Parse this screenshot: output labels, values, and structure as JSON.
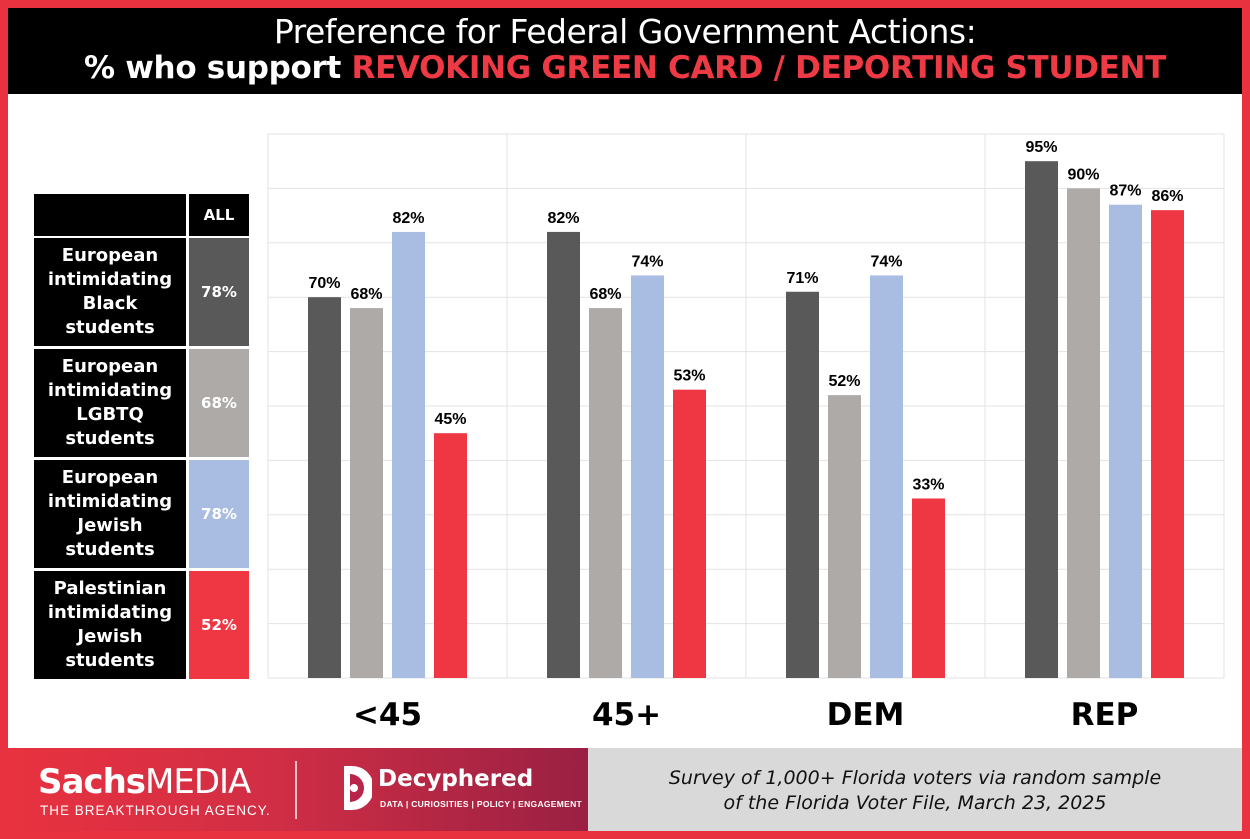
{
  "title": {
    "line1": "Preference for Federal Government Actions:",
    "line2_prefix": "% who support ",
    "line2_highlight": "REVOKING GREEN CARD / DEPORTING STUDENT"
  },
  "legend": {
    "header": "ALL",
    "rows": [
      {
        "label": "European intimidating Black students",
        "all": "78%",
        "color": "#595959"
      },
      {
        "label": "European intimidating LGBTQ students",
        "all": "68%",
        "color": "#adaaa8"
      },
      {
        "label": "European intimidating Jewish students",
        "all": "78%",
        "color": "#a9bde3"
      },
      {
        "label": "Palestinian intimidating Jewish students",
        "all": "52%",
        "color": "#ee3742"
      }
    ]
  },
  "chart_data": {
    "type": "bar",
    "categories": [
      "<45",
      "45+",
      "DEM",
      "REP"
    ],
    "series": [
      {
        "name": "European intimidating Black students",
        "values": [
          70,
          82,
          71,
          95
        ],
        "color": "#595959"
      },
      {
        "name": "European intimidating LGBTQ students",
        "values": [
          68,
          68,
          52,
          90
        ],
        "color": "#adaaa8"
      },
      {
        "name": "European intimidating Jewish students",
        "values": [
          82,
          74,
          74,
          87
        ],
        "color": "#a9bde3"
      },
      {
        "name": "Palestinian intimidating Jewish students",
        "values": [
          45,
          53,
          33,
          86
        ],
        "color": "#ee3742"
      }
    ],
    "ylim": [
      0,
      100
    ],
    "grid": true,
    "value_suffix": "%"
  },
  "footer": {
    "brand_sachs_bold": "Sachs",
    "brand_sachs_light": "MEDIA",
    "brand_sachs_tagline": "THE BREAKTHROUGH AGENCY.",
    "brand_decyphered": "Decyphered",
    "brand_decyphered_tagline": "DATA | CURIOSITIES | POLICY | ENGAGEMENT",
    "note_line1": "Survey of  1,000+ Florida voters via random sample",
    "note_line2": "of  the Florida Voter File, March 23, 2025"
  }
}
